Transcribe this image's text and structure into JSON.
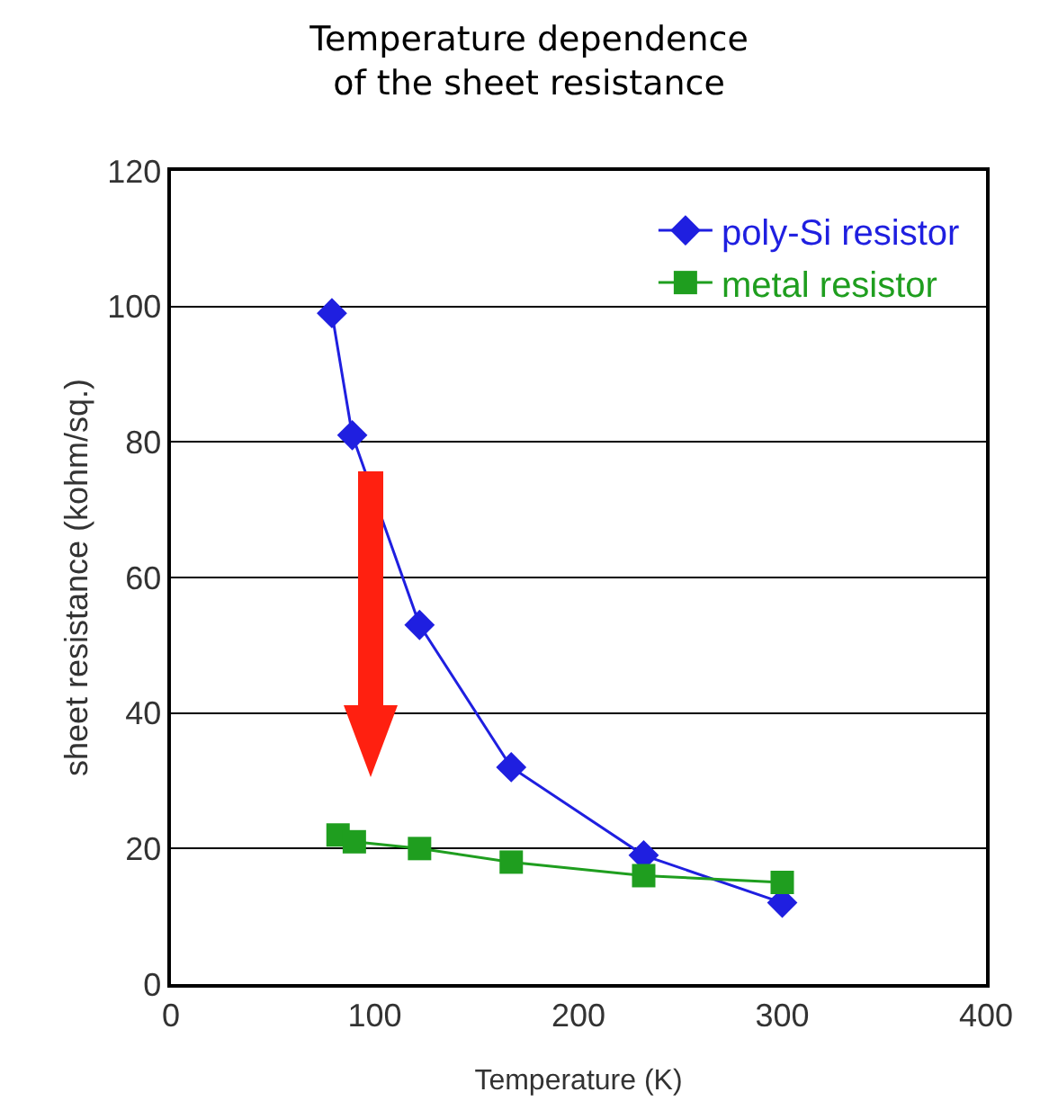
{
  "chart_data": {
    "type": "line",
    "title": "Temperature dependence of the sheet resistance",
    "xlabel": "Temperature (K)",
    "ylabel": "sheet resistance (kohm/sq.)",
    "xlim": [
      0,
      400
    ],
    "xticks": [
      0,
      100,
      200,
      300,
      400
    ],
    "ylim": [
      0,
      120
    ],
    "yticks": [
      0,
      20,
      40,
      60,
      80,
      100,
      120
    ],
    "grid": "y",
    "legend": "top right",
    "line_style": "solid",
    "series": [
      {
        "name": "poly-Si resistor",
        "color": "#1f1fe0",
        "marker": "diamond",
        "x": [
          79,
          89,
          122,
          167,
          232,
          300
        ],
        "values": [
          99,
          81,
          53,
          32,
          19,
          12
        ]
      },
      {
        "name": "metal resistor",
        "color": "#1f9e1f",
        "marker": "square",
        "x": [
          82,
          90,
          122,
          167,
          232,
          300
        ],
        "values": [
          22,
          21,
          20,
          18,
          16,
          15
        ]
      }
    ]
  }
}
